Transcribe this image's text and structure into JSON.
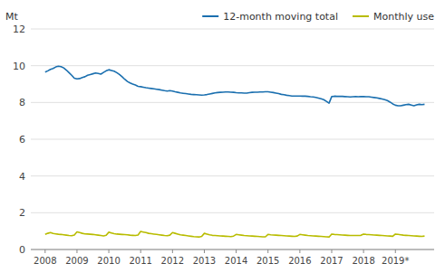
{
  "chart_data": {
    "type": "line",
    "y_label": "Mt",
    "x": [
      2008,
      2008.0833,
      2008.1667,
      2008.25,
      2008.3333,
      2008.4167,
      2008.5,
      2008.5833,
      2008.6667,
      2008.75,
      2008.8333,
      2008.9167,
      2009,
      2009.0833,
      2009.1667,
      2009.25,
      2009.3333,
      2009.4167,
      2009.5,
      2009.5833,
      2009.6667,
      2009.75,
      2009.8333,
      2009.9167,
      2010,
      2010.0833,
      2010.1667,
      2010.25,
      2010.3333,
      2010.4167,
      2010.5,
      2010.5833,
      2010.6667,
      2010.75,
      2010.8333,
      2010.9167,
      2011,
      2011.0833,
      2011.1667,
      2011.25,
      2011.3333,
      2011.4167,
      2011.5,
      2011.5833,
      2011.6667,
      2011.75,
      2011.8333,
      2011.9167,
      2012,
      2012.0833,
      2012.1667,
      2012.25,
      2012.3333,
      2012.4167,
      2012.5,
      2012.5833,
      2012.6667,
      2012.75,
      2012.8333,
      2012.9167,
      2013,
      2013.0833,
      2013.1667,
      2013.25,
      2013.3333,
      2013.4167,
      2013.5,
      2013.5833,
      2013.6667,
      2013.75,
      2013.8333,
      2013.9167,
      2014,
      2014.0833,
      2014.1667,
      2014.25,
      2014.3333,
      2014.4167,
      2014.5,
      2014.5833,
      2014.6667,
      2014.75,
      2014.8333,
      2014.9167,
      2015,
      2015.0833,
      2015.1667,
      2015.25,
      2015.3333,
      2015.4167,
      2015.5,
      2015.5833,
      2015.6667,
      2015.75,
      2015.8333,
      2015.9167,
      2016,
      2016.0833,
      2016.1667,
      2016.25,
      2016.3333,
      2016.4167,
      2016.5,
      2016.5833,
      2016.6667,
      2016.75,
      2016.8333,
      2016.9167,
      2017,
      2017.0833,
      2017.1667,
      2017.25,
      2017.3333,
      2017.4167,
      2017.5,
      2017.5833,
      2017.6667,
      2017.75,
      2017.8333,
      2017.9167,
      2018,
      2018.0833,
      2018.1667,
      2018.25,
      2018.3333,
      2018.4167,
      2018.5,
      2018.5833,
      2018.6667,
      2018.75,
      2018.8333,
      2018.9167,
      2019,
      2019.0833,
      2019.1667,
      2019.25,
      2019.3333,
      2019.4167,
      2019.5,
      2019.5833,
      2019.6667,
      2019.75,
      2019.8333,
      2019.9167
    ],
    "series": [
      {
        "name": "12-month moving total",
        "color": "#1a6faf",
        "values": [
          9.65,
          9.72,
          9.8,
          9.85,
          9.93,
          9.97,
          9.95,
          9.88,
          9.76,
          9.62,
          9.48,
          9.32,
          9.28,
          9.3,
          9.36,
          9.4,
          9.48,
          9.52,
          9.56,
          9.6,
          9.58,
          9.54,
          9.63,
          9.72,
          9.78,
          9.74,
          9.7,
          9.62,
          9.52,
          9.4,
          9.26,
          9.14,
          9.06,
          9.0,
          8.95,
          8.88,
          8.86,
          8.83,
          8.8,
          8.78,
          8.76,
          8.74,
          8.72,
          8.7,
          8.67,
          8.64,
          8.62,
          8.64,
          8.62,
          8.58,
          8.55,
          8.52,
          8.5,
          8.48,
          8.46,
          8.44,
          8.43,
          8.42,
          8.41,
          8.4,
          8.41,
          8.43,
          8.46,
          8.49,
          8.52,
          8.54,
          8.55,
          8.56,
          8.57,
          8.57,
          8.56,
          8.55,
          8.53,
          8.52,
          8.52,
          8.51,
          8.51,
          8.53,
          8.55,
          8.56,
          8.56,
          8.57,
          8.57,
          8.58,
          8.58,
          8.56,
          8.54,
          8.51,
          8.48,
          8.44,
          8.42,
          8.39,
          8.37,
          8.35,
          8.35,
          8.35,
          8.35,
          8.34,
          8.34,
          8.33,
          8.31,
          8.3,
          8.27,
          8.24,
          8.2,
          8.15,
          8.06,
          7.96,
          8.32,
          8.34,
          8.33,
          8.33,
          8.33,
          8.32,
          8.31,
          8.3,
          8.31,
          8.32,
          8.31,
          8.32,
          8.32,
          8.31,
          8.31,
          8.29,
          8.27,
          8.25,
          8.22,
          8.19,
          8.15,
          8.1,
          8.02,
          7.92,
          7.85,
          7.82,
          7.82,
          7.85,
          7.88,
          7.9,
          7.86,
          7.82,
          7.87,
          7.9,
          7.88,
          7.9
        ]
      },
      {
        "name": "Monthly use",
        "color": "#b8bc00",
        "values": [
          0.82,
          0.88,
          0.92,
          0.87,
          0.85,
          0.83,
          0.82,
          0.8,
          0.78,
          0.76,
          0.75,
          0.79,
          0.96,
          0.92,
          0.88,
          0.85,
          0.84,
          0.83,
          0.82,
          0.8,
          0.78,
          0.76,
          0.74,
          0.77,
          0.94,
          0.9,
          0.86,
          0.84,
          0.83,
          0.82,
          0.81,
          0.8,
          0.78,
          0.77,
          0.76,
          0.79,
          0.98,
          0.95,
          0.92,
          0.88,
          0.86,
          0.84,
          0.82,
          0.8,
          0.78,
          0.76,
          0.75,
          0.78,
          0.92,
          0.88,
          0.84,
          0.8,
          0.78,
          0.76,
          0.74,
          0.72,
          0.7,
          0.69,
          0.68,
          0.71,
          0.88,
          0.84,
          0.8,
          0.77,
          0.76,
          0.75,
          0.74,
          0.73,
          0.72,
          0.71,
          0.7,
          0.73,
          0.82,
          0.8,
          0.78,
          0.76,
          0.75,
          0.74,
          0.73,
          0.72,
          0.71,
          0.7,
          0.69,
          0.69,
          0.82,
          0.8,
          0.79,
          0.78,
          0.77,
          0.76,
          0.75,
          0.74,
          0.73,
          0.72,
          0.71,
          0.73,
          0.82,
          0.8,
          0.78,
          0.76,
          0.75,
          0.74,
          0.73,
          0.72,
          0.71,
          0.7,
          0.69,
          0.68,
          0.84,
          0.82,
          0.81,
          0.8,
          0.79,
          0.78,
          0.77,
          0.76,
          0.76,
          0.76,
          0.76,
          0.77,
          0.84,
          0.82,
          0.81,
          0.8,
          0.79,
          0.78,
          0.77,
          0.76,
          0.75,
          0.74,
          0.73,
          0.72,
          0.84,
          0.82,
          0.8,
          0.78,
          0.77,
          0.76,
          0.75,
          0.74,
          0.73,
          0.72,
          0.71,
          0.73
        ]
      }
    ],
    "xlim": [
      2007.55,
      2020.2167
    ],
    "xticks": [
      2008,
      2009,
      2010,
      2011,
      2012,
      2013,
      2014,
      2015,
      2016,
      2017,
      2018,
      {
        "value": 2019,
        "label": "2019*"
      }
    ],
    "ylim": [
      0,
      12
    ],
    "yticks": [
      0,
      2,
      4,
      6,
      8,
      10,
      12
    ],
    "grid": true,
    "legend": "upper right"
  }
}
